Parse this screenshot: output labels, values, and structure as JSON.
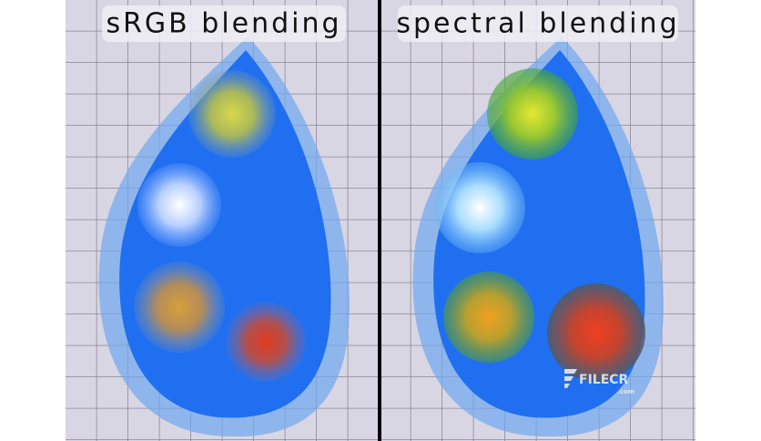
{
  "panels": [
    {
      "label": "sRGB blending"
    },
    {
      "label": "spectral blending"
    }
  ],
  "watermark": {
    "brand": "FILECR",
    "domain": ".com"
  }
}
